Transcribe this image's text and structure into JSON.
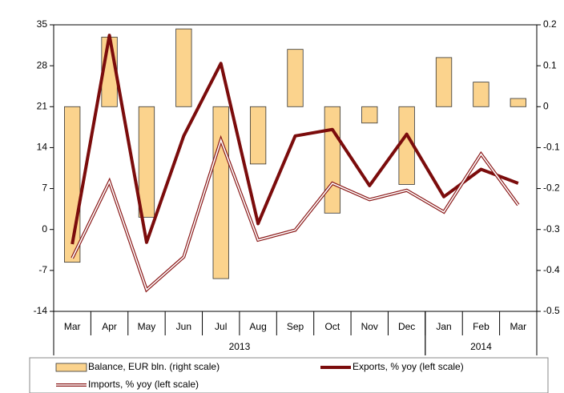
{
  "chart_data": {
    "type": "bar-line",
    "categories": [
      "Mar",
      "Apr",
      "May",
      "Jun",
      "Jul",
      "Aug",
      "Sep",
      "Oct",
      "Nov",
      "Dec",
      "Jan",
      "Feb",
      "Mar"
    ],
    "years": [
      "2013",
      "2014"
    ],
    "year_spans": [
      10,
      3
    ],
    "ylim": [
      -14,
      35
    ],
    "yticks": [
      -14,
      -7,
      0,
      7,
      14,
      21,
      28,
      35
    ],
    "y2lim": [
      -0.5,
      0.2
    ],
    "y2ticks": [
      -0.5,
      -0.4,
      -0.3,
      -0.2,
      -0.1,
      0,
      0.1,
      0.2
    ],
    "series": [
      {
        "name": "Balance, EUR bln. (right scale)",
        "type": "bar",
        "axis": "y2",
        "color": "#fbd38d",
        "values": [
          -0.38,
          0.17,
          -0.27,
          0.19,
          -0.42,
          -0.14,
          0.14,
          -0.26,
          -0.04,
          -0.19,
          0.12,
          0.06,
          0.02
        ]
      },
      {
        "name": "Exports, % yoy (left scale)",
        "type": "line",
        "color": "#7b0c0c",
        "values": [
          -2.5,
          33.2,
          -2.2,
          16,
          28.4,
          1,
          16,
          17.1,
          7.5,
          16.3,
          5.6,
          10.3,
          7.9
        ]
      },
      {
        "name": "Imports, % yoy (left scale)",
        "type": "double-line",
        "color": "#8b1a1a",
        "values": [
          -4.9,
          8.2,
          -10.3,
          -4.7,
          15.3,
          -1.8,
          -0.1,
          7.9,
          5.1,
          6.7,
          3,
          12.9,
          4.2
        ]
      }
    ]
  }
}
